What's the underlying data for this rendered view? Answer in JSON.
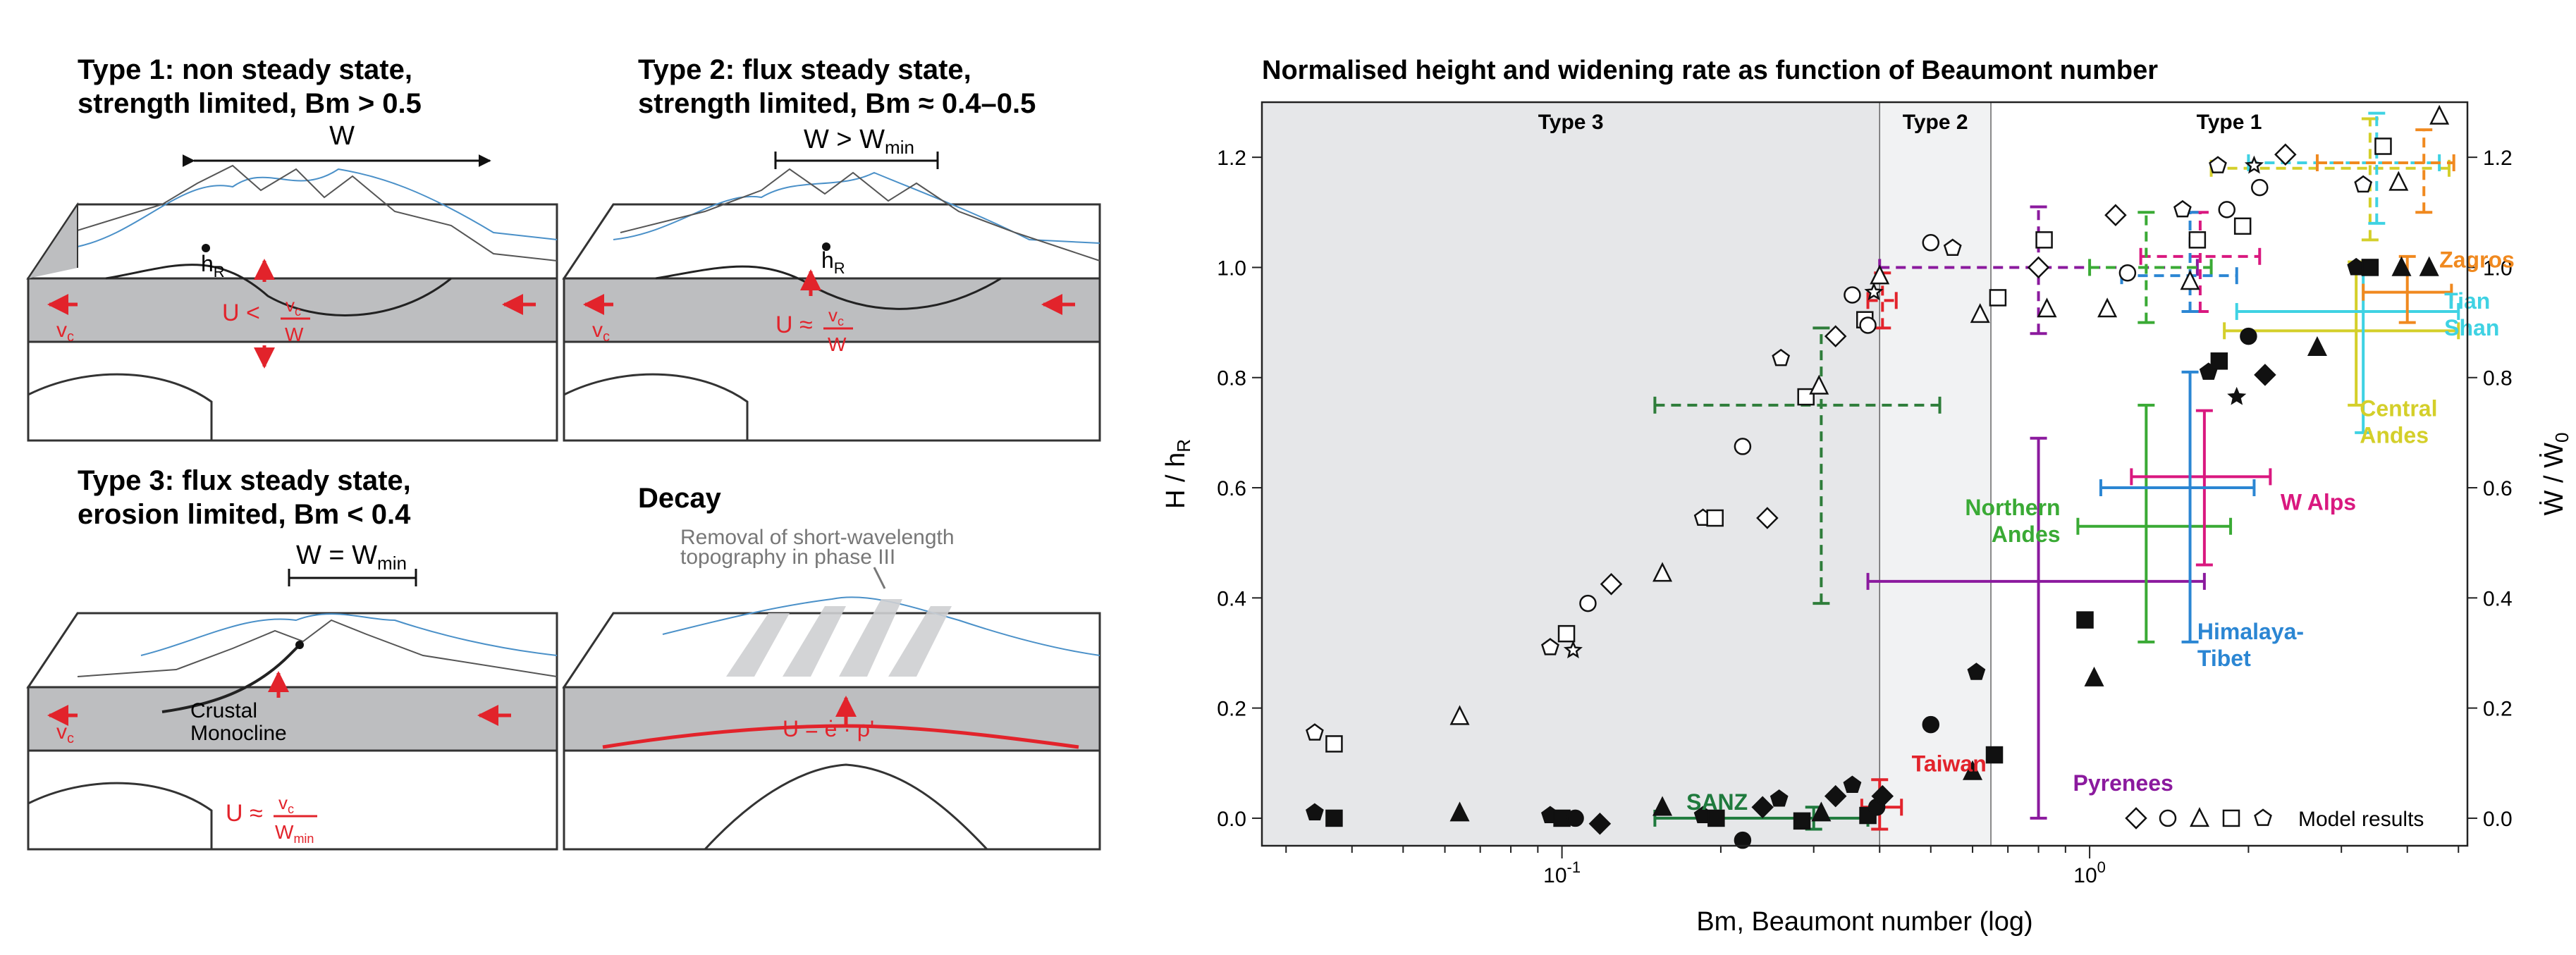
{
  "left_panels": {
    "type1": {
      "title1": "Type 1: non steady state,",
      "title2": "strength limited, Bm > 0.5",
      "w_label": "W",
      "hr": "h",
      "hr_sub": "R",
      "u_label": "U <",
      "vc": "v",
      "vc_sub": "c",
      "frac_den": "W"
    },
    "type2": {
      "title1": "Type 2:  flux steady state,",
      "title2": "strength limited, Bm ≈ 0.4–0.5",
      "w_label": "W > W",
      "w_sub": "min",
      "hr": "h",
      "hr_sub": "R",
      "u_label": "U ≈",
      "vc": "v",
      "vc_sub": "c",
      "frac_den": "W"
    },
    "type3": {
      "title1": "Type 3: flux steady state,",
      "title2": "erosion limited, Bm < 0.4",
      "w_label": "W = W",
      "w_sub": "min",
      "monocline1": "Crustal",
      "monocline2": "Monocline",
      "u_label": "U ≈",
      "vc": "v",
      "vc_sub": "c",
      "frac_den": "W",
      "frac_den_sub": "min"
    },
    "decay": {
      "title": "Decay",
      "note1": "Removal of short-wavelength",
      "note2": "topography in phase III",
      "u_label": "U = ė · ρ'"
    }
  },
  "chart_data": {
    "type": "scatter",
    "title": "Normalised height and widening rate as function of Beaumont number",
    "xlabel": "Bm, Beaumont number (log)",
    "ylabel_left": "H / h",
    "ylabel_left_sub": "R",
    "ylabel_right": "Ẇ / Ẇ",
    "ylabel_right_sub": "0",
    "xscale": "log",
    "xlim": [
      0.027,
      5.2
    ],
    "ylim": [
      -0.05,
      1.3
    ],
    "x_ticks": [
      {
        "v": 0.1,
        "label": "10",
        "exp": "-1"
      },
      {
        "v": 1,
        "label": "10",
        "exp": "0"
      }
    ],
    "y_ticks": [
      "0.0",
      "0.2",
      "0.4",
      "0.6",
      "0.8",
      "1.0",
      "1.2"
    ],
    "regimes": [
      {
        "label": "Type 3",
        "x0": 0.027,
        "x1": 0.4,
        "color": "#e6e7e9"
      },
      {
        "label": "Type 2",
        "x0": 0.4,
        "x1": 0.65,
        "color": "#f1f2f3"
      },
      {
        "label": "Type 1",
        "x0": 0.65,
        "x1": 5.2,
        "color": "#ffffff"
      }
    ],
    "model_results_height": [
      {
        "m": "pent",
        "x": 0.034,
        "y": 0.155
      },
      {
        "m": "sq",
        "x": 0.037,
        "y": 0.135
      },
      {
        "m": "tri",
        "x": 0.064,
        "y": 0.185
      },
      {
        "m": "pent",
        "x": 0.095,
        "y": 0.31
      },
      {
        "m": "sq",
        "x": 0.102,
        "y": 0.335
      },
      {
        "m": "star",
        "x": 0.105,
        "y": 0.305
      },
      {
        "m": "circ",
        "x": 0.112,
        "y": 0.39
      },
      {
        "m": "dia",
        "x": 0.124,
        "y": 0.425
      },
      {
        "m": "tri",
        "x": 0.155,
        "y": 0.445
      },
      {
        "m": "pent",
        "x": 0.185,
        "y": 0.545
      },
      {
        "m": "sq",
        "x": 0.195,
        "y": 0.545
      },
      {
        "m": "circ",
        "x": 0.22,
        "y": 0.675
      },
      {
        "m": "dia",
        "x": 0.245,
        "y": 0.545
      },
      {
        "m": "pent",
        "x": 0.26,
        "y": 0.835
      },
      {
        "m": "sq",
        "x": 0.29,
        "y": 0.765
      },
      {
        "m": "tri",
        "x": 0.307,
        "y": 0.785
      },
      {
        "m": "dia",
        "x": 0.33,
        "y": 0.875
      },
      {
        "m": "circ",
        "x": 0.355,
        "y": 0.95
      },
      {
        "m": "sq",
        "x": 0.375,
        "y": 0.905
      },
      {
        "m": "circ",
        "x": 0.38,
        "y": 0.895
      },
      {
        "m": "star",
        "x": 0.39,
        "y": 0.955
      },
      {
        "m": "tri",
        "x": 0.4,
        "y": 0.985
      },
      {
        "m": "circ",
        "x": 0.5,
        "y": 1.045
      },
      {
        "m": "pent",
        "x": 0.55,
        "y": 1.035
      },
      {
        "m": "tri",
        "x": 0.62,
        "y": 0.915
      },
      {
        "m": "sq",
        "x": 0.67,
        "y": 0.945
      },
      {
        "m": "sq",
        "x": 0.82,
        "y": 1.05
      },
      {
        "m": "dia",
        "x": 0.8,
        "y": 1.0
      },
      {
        "m": "tri",
        "x": 0.83,
        "y": 0.925
      },
      {
        "m": "dia",
        "x": 1.12,
        "y": 1.095
      },
      {
        "m": "circ",
        "x": 1.18,
        "y": 0.99
      },
      {
        "m": "tri",
        "x": 1.08,
        "y": 0.925
      },
      {
        "m": "tri",
        "x": 1.55,
        "y": 0.975
      },
      {
        "m": "sq",
        "x": 1.6,
        "y": 1.05
      },
      {
        "m": "pent",
        "x": 1.5,
        "y": 1.105
      },
      {
        "m": "sq",
        "x": 1.95,
        "y": 1.075
      },
      {
        "m": "circ",
        "x": 1.82,
        "y": 1.105
      },
      {
        "m": "circ",
        "x": 2.1,
        "y": 1.145
      },
      {
        "m": "pent",
        "x": 1.75,
        "y": 1.185
      },
      {
        "m": "star",
        "x": 2.05,
        "y": 1.185
      },
      {
        "m": "dia",
        "x": 2.35,
        "y": 1.205
      },
      {
        "m": "sq",
        "x": 3.6,
        "y": 1.22
      },
      {
        "m": "tri",
        "x": 3.85,
        "y": 1.155
      },
      {
        "m": "pent",
        "x": 3.3,
        "y": 1.15
      },
      {
        "m": "tri",
        "x": 4.6,
        "y": 1.275
      }
    ],
    "model_results_widening": [
      {
        "m": "pent",
        "x": 0.034,
        "y": 0.01
      },
      {
        "m": "sq",
        "x": 0.037,
        "y": 0.0
      },
      {
        "m": "tri",
        "x": 0.064,
        "y": 0.01
      },
      {
        "m": "pent",
        "x": 0.095,
        "y": 0.005
      },
      {
        "m": "sq",
        "x": 0.1,
        "y": 0.0
      },
      {
        "m": "circ",
        "x": 0.106,
        "y": 0.0
      },
      {
        "m": "dia",
        "x": 0.118,
        "y": -0.01
      },
      {
        "m": "tri",
        "x": 0.155,
        "y": 0.02
      },
      {
        "m": "pent",
        "x": 0.185,
        "y": 0.005
      },
      {
        "m": "sq",
        "x": 0.196,
        "y": 0.0
      },
      {
        "m": "circ",
        "x": 0.22,
        "y": -0.04
      },
      {
        "m": "dia",
        "x": 0.24,
        "y": 0.02
      },
      {
        "m": "pent",
        "x": 0.258,
        "y": 0.035
      },
      {
        "m": "sq",
        "x": 0.285,
        "y": -0.005
      },
      {
        "m": "tri",
        "x": 0.31,
        "y": 0.01
      },
      {
        "m": "dia",
        "x": 0.33,
        "y": 0.04
      },
      {
        "m": "pent",
        "x": 0.355,
        "y": 0.06
      },
      {
        "m": "sq",
        "x": 0.38,
        "y": 0.005
      },
      {
        "m": "circ",
        "x": 0.395,
        "y": 0.02
      },
      {
        "m": "dia",
        "x": 0.405,
        "y": 0.04
      },
      {
        "m": "circ",
        "x": 0.5,
        "y": 0.17
      },
      {
        "m": "tri",
        "x": 0.6,
        "y": 0.085
      },
      {
        "m": "pent",
        "x": 0.61,
        "y": 0.265
      },
      {
        "m": "sq",
        "x": 0.66,
        "y": 0.115
      },
      {
        "m": "tri",
        "x": 1.02,
        "y": 0.255
      },
      {
        "m": "sq",
        "x": 0.98,
        "y": 0.36
      },
      {
        "m": "pent",
        "x": 1.68,
        "y": 0.81
      },
      {
        "m": "sq",
        "x": 1.76,
        "y": 0.83
      },
      {
        "m": "star",
        "x": 1.9,
        "y": 0.765
      },
      {
        "m": "circ",
        "x": 2.0,
        "y": 0.875
      },
      {
        "m": "dia",
        "x": 2.15,
        "y": 0.805
      },
      {
        "m": "tri",
        "x": 2.7,
        "y": 0.855
      },
      {
        "m": "pent",
        "x": 3.2,
        "y": 1.0
      },
      {
        "m": "sq",
        "x": 3.4,
        "y": 1.0
      },
      {
        "m": "tri",
        "x": 3.9,
        "y": 1.0
      },
      {
        "m": "tri",
        "x": 4.4,
        "y": 1.0
      }
    ],
    "natural_examples": [
      {
        "name": "SANZ",
        "color": "#1f7a3d",
        "dashed": false,
        "x": 0.3,
        "xlo": 0.15,
        "xhi": 0.38,
        "y": 0.0,
        "ylo": -0.02,
        "yhi": 0.02,
        "label_x": 0.225,
        "label_y": 0.015,
        "anchor": "end"
      },
      {
        "name": "Taiwan",
        "color": "#e2232b",
        "dashed": false,
        "x": 0.4,
        "xlo": 0.37,
        "xhi": 0.44,
        "y": 0.02,
        "ylo": -0.02,
        "yhi": 0.07,
        "label_x": 0.46,
        "label_y": 0.085,
        "anchor": "start"
      },
      {
        "name": "Pyrenees",
        "color": "#8b1a9e",
        "dashed": false,
        "x": 0.8,
        "xlo": 0.38,
        "xhi": 1.65,
        "y": 0.43,
        "ylo": 0.0,
        "yhi": 0.69,
        "label_x": 0.93,
        "label_y": 0.05,
        "anchor": "start"
      },
      {
        "name": "Northern",
        "name2": "Andes",
        "color": "#3aaa35",
        "dashed": false,
        "x": 1.28,
        "xlo": 0.95,
        "xhi": 1.85,
        "y": 0.53,
        "ylo": 0.32,
        "yhi": 0.75,
        "label_x": 0.88,
        "label_y": 0.55,
        "anchor": "end"
      },
      {
        "name": "W Alps",
        "color": "#d9187f",
        "dashed": false,
        "x": 1.65,
        "xlo": 1.2,
        "xhi": 2.2,
        "y": 0.62,
        "ylo": 0.46,
        "yhi": 0.74,
        "label_x": 2.3,
        "label_y": 0.56,
        "anchor": "start"
      },
      {
        "name": "Himalaya-",
        "name2": "Tibet",
        "color": "#2b86d3",
        "dashed": false,
        "x": 1.55,
        "xlo": 1.05,
        "xhi": 2.05,
        "y": 0.6,
        "ylo": 0.32,
        "yhi": 0.81,
        "label_x": 1.6,
        "label_y": 0.325,
        "anchor": "start"
      },
      {
        "name": "Central",
        "name2": "Andes",
        "color": "#d4cf2a",
        "dashed": false,
        "x": 3.2,
        "xlo": 1.8,
        "xhi": 5.0,
        "y": 0.885,
        "ylo": 0.75,
        "yhi": 1.01,
        "label_x": 3.25,
        "label_y": 0.73,
        "anchor": "start"
      },
      {
        "name": "Tian",
        "name2": "Shan",
        "color": "#3fd2e3",
        "dashed": false,
        "x": 3.3,
        "xlo": 1.9,
        "xhi": 5.0,
        "y": 0.92,
        "ylo": 0.7,
        "yhi": 1.0,
        "label_x": 4.7,
        "label_y": 0.925,
        "anchor": "start"
      },
      {
        "name": "Zagros",
        "color": "#f0891f",
        "dashed": false,
        "x": 4.0,
        "xlo": 3.3,
        "xhi": 4.85,
        "y": 0.955,
        "ylo": 0.9,
        "yhi": 1.02,
        "label_x": 4.6,
        "label_y": 1.0,
        "anchor": "start"
      },
      {
        "color": "#2e7d3a",
        "dashed": true,
        "x": 0.31,
        "xlo": 0.15,
        "xhi": 0.52,
        "y": 0.75,
        "ylo": 0.39,
        "yhi": 0.89
      },
      {
        "color": "#e2232b",
        "dashed": true,
        "x": 0.405,
        "xlo": 0.38,
        "xhi": 0.43,
        "y": 0.94,
        "ylo": 0.89,
        "yhi": 0.99
      },
      {
        "color": "#8b1a9e",
        "dashed": true,
        "x": 0.8,
        "xlo": 0.4,
        "xhi": 1.6,
        "y": 1.0,
        "ylo": 0.88,
        "yhi": 1.11
      },
      {
        "color": "#d9187f",
        "dashed": true,
        "x": 1.62,
        "xlo": 1.25,
        "xhi": 2.1,
        "y": 1.02,
        "ylo": 0.92,
        "yhi": 1.1
      },
      {
        "color": "#3aaa35",
        "dashed": true,
        "x": 1.28,
        "xlo": 1.0,
        "xhi": 1.7,
        "y": 1.0,
        "ylo": 0.9,
        "yhi": 1.1
      },
      {
        "color": "#2b86d3",
        "dashed": true,
        "x": 1.55,
        "xlo": 1.15,
        "xhi": 1.9,
        "y": 0.985,
        "ylo": 0.92,
        "yhi": 1.1
      },
      {
        "color": "#d4cf2a",
        "dashed": true,
        "x": 3.4,
        "xlo": 1.7,
        "xhi": 4.8,
        "y": 1.18,
        "ylo": 1.05,
        "yhi": 1.27
      },
      {
        "color": "#3fd2e3",
        "dashed": true,
        "x": 3.5,
        "xlo": 2.0,
        "xhi": 4.6,
        "y": 1.19,
        "ylo": 1.08,
        "yhi": 1.28
      },
      {
        "color": "#f0891f",
        "dashed": true,
        "x": 4.3,
        "xlo": 2.7,
        "xhi": 4.9,
        "y": 1.19,
        "ylo": 1.1,
        "yhi": 1.25
      }
    ],
    "legend": {
      "label": "Model results",
      "markers": [
        "dia",
        "circ",
        "tri",
        "sq",
        "pent"
      ]
    }
  }
}
